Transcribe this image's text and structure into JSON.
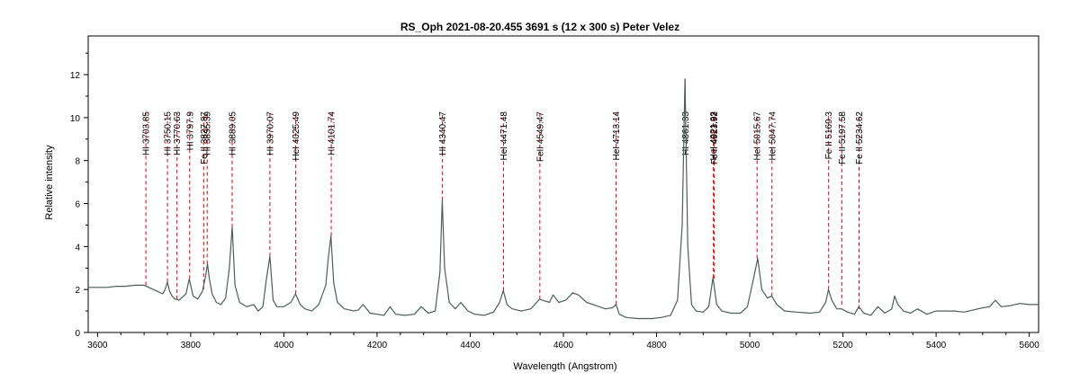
{
  "chart_data": {
    "type": "line",
    "title": "RS_Oph  2021-08-20.455  3691 s (12 x 300 s)  Peter Velez",
    "xlabel": "Wavelength (Angstrom)",
    "ylabel": "Relative intensity",
    "xlim": [
      3580,
      5620
    ],
    "ylim": [
      0,
      13.8
    ],
    "x_ticks": [
      3600,
      3800,
      4000,
      4200,
      4400,
      4600,
      4800,
      5000,
      5200,
      5400,
      5600
    ],
    "y_ticks": [
      0,
      2,
      4,
      6,
      8,
      10,
      12
    ],
    "grid": false,
    "legend": "none",
    "colors": {
      "spectrum": "#4a5e5c",
      "line_markers": "#e00000",
      "axis": "#000000"
    },
    "series": [
      {
        "x": [
          3580,
          3600,
          3620,
          3640,
          3660,
          3680,
          3700,
          3710,
          3720,
          3730,
          3740,
          3745,
          3750,
          3755,
          3760,
          3766,
          3770,
          3775,
          3780,
          3790,
          3797,
          3805,
          3815,
          3825,
          3832,
          3836,
          3840,
          3846,
          3855,
          3865,
          3875,
          3883,
          3889,
          3895,
          3905,
          3920,
          3935,
          3945,
          3955,
          3962,
          3970,
          3977,
          3985,
          4000,
          4015,
          4025,
          4035,
          4045,
          4060,
          4075,
          4090,
          4095,
          4101,
          4107,
          4115,
          4130,
          4150,
          4160,
          4170,
          4185,
          4200,
          4215,
          4228,
          4240,
          4260,
          4280,
          4295,
          4310,
          4325,
          4335,
          4340,
          4345,
          4355,
          4368,
          4380,
          4395,
          4410,
          4430,
          4450,
          4463,
          4471,
          4479,
          4490,
          4510,
          4530,
          4549,
          4555,
          4570,
          4578,
          4590,
          4605,
          4620,
          4632,
          4650,
          4670,
          4690,
          4705,
          4713,
          4720,
          4735,
          4760,
          4790,
          4810,
          4830,
          4845,
          4855,
          4861,
          4867,
          4875,
          4885,
          4900,
          4912,
          4921,
          4929,
          4940,
          4960,
          4980,
          4995,
          5008,
          5017,
          5026,
          5038,
          5047,
          5058,
          5075,
          5100,
          5130,
          5150,
          5163,
          5169,
          5176,
          5187,
          5197,
          5210,
          5225,
          5234,
          5245,
          5260,
          5275,
          5290,
          5305,
          5311,
          5318,
          5330,
          5345,
          5360,
          5380,
          5400,
          5420,
          5440,
          5460,
          5480,
          5500,
          5515,
          5527,
          5540,
          5560,
          5580,
          5600,
          5620
        ],
        "y": [
          2.1,
          2.1,
          2.1,
          2.15,
          2.15,
          2.2,
          2.2,
          2.1,
          2.0,
          1.9,
          1.8,
          2.0,
          2.35,
          1.9,
          1.7,
          1.55,
          1.55,
          1.5,
          1.6,
          1.8,
          2.5,
          1.7,
          1.55,
          1.9,
          2.6,
          3.2,
          2.5,
          1.8,
          1.4,
          1.3,
          1.6,
          3.0,
          4.9,
          2.2,
          1.4,
          1.2,
          1.3,
          1.0,
          1.2,
          2.4,
          3.55,
          1.5,
          1.2,
          1.2,
          1.4,
          1.8,
          1.3,
          1.1,
          1.0,
          1.3,
          2.2,
          3.4,
          4.5,
          2.3,
          1.4,
          1.1,
          1.0,
          1.05,
          1.3,
          0.9,
          0.85,
          0.8,
          1.2,
          0.85,
          0.8,
          0.85,
          1.2,
          0.9,
          1.0,
          2.8,
          6.15,
          3.0,
          1.4,
          1.1,
          1.4,
          1.0,
          0.85,
          0.8,
          0.95,
          1.4,
          1.95,
          1.3,
          1.1,
          1.0,
          1.1,
          1.55,
          1.5,
          1.4,
          1.75,
          1.4,
          1.5,
          1.85,
          1.75,
          1.4,
          1.25,
          1.1,
          1.15,
          1.3,
          0.85,
          0.7,
          0.65,
          0.65,
          0.7,
          0.8,
          1.5,
          5.0,
          11.8,
          4.0,
          1.3,
          1.0,
          0.95,
          1.2,
          2.55,
          1.3,
          1.0,
          0.9,
          0.9,
          1.2,
          2.5,
          3.45,
          2.0,
          1.6,
          1.7,
          1.3,
          1.0,
          0.95,
          0.9,
          0.95,
          1.4,
          2.0,
          1.5,
          1.1,
          1.1,
          0.95,
          0.85,
          1.2,
          0.9,
          0.8,
          1.2,
          0.9,
          1.1,
          1.7,
          1.3,
          1.0,
          0.9,
          1.1,
          0.85,
          1.0,
          1.0,
          1.0,
          0.95,
          1.05,
          1.15,
          1.2,
          1.5,
          1.2,
          1.25,
          1.35,
          1.3,
          1.3
        ]
      }
    ],
    "line_ids": [
      {
        "label": "HI 3703.85",
        "x": 3703.85,
        "y_base": 2.2
      },
      {
        "label": "HI 3750.15",
        "x": 3750.15,
        "y_base": 2.35
      },
      {
        "label": "HI 3770.63",
        "x": 3770.63,
        "y_base": 1.55
      },
      {
        "label": "HI 3797.9",
        "x": 3797.9,
        "y_base": 2.5
      },
      {
        "label": "Fe II 3827.87",
        "x": 3827.87,
        "y_base": 2.0
      },
      {
        "label": "HI 3835.39",
        "x": 3835.39,
        "y_base": 3.2
      },
      {
        "label": "HI 3889.05",
        "x": 3889.05,
        "y_base": 4.9
      },
      {
        "label": "HI 3970.07",
        "x": 3970.07,
        "y_base": 3.55
      },
      {
        "label": "HeI 4025.49",
        "x": 4025.49,
        "y_base": 1.8
      },
      {
        "label": "HI 4101.74",
        "x": 4101.74,
        "y_base": 4.5
      },
      {
        "label": "HI 4340.47",
        "x": 4340.47,
        "y_base": 6.15
      },
      {
        "label": "HeI 4471.48",
        "x": 4471.48,
        "y_base": 1.95
      },
      {
        "label": "FeII 4549.47",
        "x": 4549.47,
        "y_base": 1.55
      },
      {
        "label": "HeI 4713.14",
        "x": 4713.14,
        "y_base": 1.3
      },
      {
        "label": "HI 4861.33",
        "x": 4861.33,
        "y_base": 11.8
      },
      {
        "label": "HeI 4921.93",
        "x": 4921.93,
        "y_base": 2.55
      },
      {
        "label": "Fe II 4923.92",
        "x": 4923.92,
        "y_base": 2.5
      },
      {
        "label": "HeI 5015.67",
        "x": 5015.67,
        "y_base": 3.45
      },
      {
        "label": "HeI 5047.74",
        "x": 5047.74,
        "y_base": 1.7
      },
      {
        "label": "Fe II 5169.3",
        "x": 5169.3,
        "y_base": 2.0
      },
      {
        "label": "Fe II 5197.58",
        "x": 5197.58,
        "y_base": 1.3
      },
      {
        "label": "Fe II 5234.62",
        "x": 5234.62,
        "y_base": 1.1
      }
    ]
  }
}
